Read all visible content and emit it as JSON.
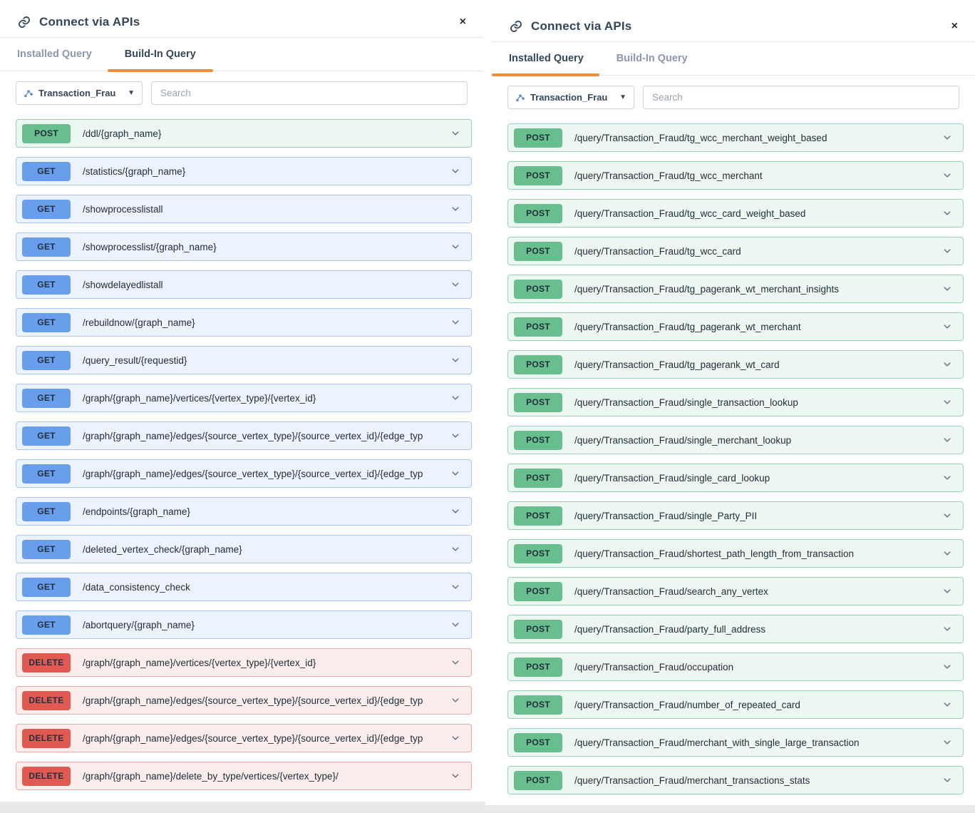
{
  "accent": {
    "tab_underline": "#F28C3A",
    "title_color": "#33475B"
  },
  "method_styles": {
    "POST": {
      "badge": "#68BE8D",
      "row_bg": "#EDF7F1",
      "row_border": "#9AD2B3"
    },
    "GET": {
      "badge": "#699EEC",
      "row_bg": "#EDF3FC",
      "row_border": "#A9C6F0"
    },
    "DELETE": {
      "badge": "#E15A52",
      "row_bg": "#FBEDEC",
      "row_border": "#EFA8A3"
    }
  },
  "left_panel": {
    "title": "Connect via APIs",
    "close_label": "×",
    "tabs": [
      {
        "label": "Installed Query",
        "active": false
      },
      {
        "label": "Build-In Query",
        "active": true
      }
    ],
    "graph_selector": {
      "value": "Transaction_Frau",
      "caret": "▼"
    },
    "search": {
      "placeholder": "Search"
    },
    "rows": [
      {
        "method": "POST",
        "path": "/ddl/{graph_name}"
      },
      {
        "method": "GET",
        "path": "/statistics/{graph_name}"
      },
      {
        "method": "GET",
        "path": "/showprocesslistall"
      },
      {
        "method": "GET",
        "path": "/showprocesslist/{graph_name}"
      },
      {
        "method": "GET",
        "path": "/showdelayedlistall"
      },
      {
        "method": "GET",
        "path": "/rebuildnow/{graph_name}"
      },
      {
        "method": "GET",
        "path": "/query_result/{requestid}"
      },
      {
        "method": "GET",
        "path": "/graph/{graph_name}/vertices/{vertex_type}/{vertex_id}"
      },
      {
        "method": "GET",
        "path": "/graph/{graph_name}/edges/{source_vertex_type}/{source_vertex_id}/{edge_typ"
      },
      {
        "method": "GET",
        "path": "/graph/{graph_name}/edges/{source_vertex_type}/{source_vertex_id}/{edge_typ"
      },
      {
        "method": "GET",
        "path": "/endpoints/{graph_name}"
      },
      {
        "method": "GET",
        "path": "/deleted_vertex_check/{graph_name}"
      },
      {
        "method": "GET",
        "path": "/data_consistency_check"
      },
      {
        "method": "GET",
        "path": "/abortquery/{graph_name}"
      },
      {
        "method": "DELETE",
        "path": "/graph/{graph_name}/vertices/{vertex_type}/{vertex_id}"
      },
      {
        "method": "DELETE",
        "path": "/graph/{graph_name}/edges/{source_vertex_type}/{source_vertex_id}/{edge_typ"
      },
      {
        "method": "DELETE",
        "path": "/graph/{graph_name}/edges/{source_vertex_type}/{source_vertex_id}/{edge_typ"
      },
      {
        "method": "DELETE",
        "path": "/graph/{graph_name}/delete_by_type/vertices/{vertex_type}/"
      }
    ]
  },
  "right_panel": {
    "title": "Connect via APIs",
    "close_label": "×",
    "tabs": [
      {
        "label": "Installed Query",
        "active": true
      },
      {
        "label": "Build-In Query",
        "active": false
      }
    ],
    "graph_selector": {
      "value": "Transaction_Frau",
      "caret": "▼"
    },
    "search": {
      "placeholder": "Search"
    },
    "rows": [
      {
        "method": "POST",
        "path": "/query/Transaction_Fraud/tg_wcc_merchant_weight_based"
      },
      {
        "method": "POST",
        "path": "/query/Transaction_Fraud/tg_wcc_merchant"
      },
      {
        "method": "POST",
        "path": "/query/Transaction_Fraud/tg_wcc_card_weight_based"
      },
      {
        "method": "POST",
        "path": "/query/Transaction_Fraud/tg_wcc_card"
      },
      {
        "method": "POST",
        "path": "/query/Transaction_Fraud/tg_pagerank_wt_merchant_insights"
      },
      {
        "method": "POST",
        "path": "/query/Transaction_Fraud/tg_pagerank_wt_merchant"
      },
      {
        "method": "POST",
        "path": "/query/Transaction_Fraud/tg_pagerank_wt_card"
      },
      {
        "method": "POST",
        "path": "/query/Transaction_Fraud/single_transaction_lookup"
      },
      {
        "method": "POST",
        "path": "/query/Transaction_Fraud/single_merchant_lookup"
      },
      {
        "method": "POST",
        "path": "/query/Transaction_Fraud/single_card_lookup"
      },
      {
        "method": "POST",
        "path": "/query/Transaction_Fraud/single_Party_PII"
      },
      {
        "method": "POST",
        "path": "/query/Transaction_Fraud/shortest_path_length_from_transaction"
      },
      {
        "method": "POST",
        "path": "/query/Transaction_Fraud/search_any_vertex"
      },
      {
        "method": "POST",
        "path": "/query/Transaction_Fraud/party_full_address"
      },
      {
        "method": "POST",
        "path": "/query/Transaction_Fraud/occupation"
      },
      {
        "method": "POST",
        "path": "/query/Transaction_Fraud/number_of_repeated_card"
      },
      {
        "method": "POST",
        "path": "/query/Transaction_Fraud/merchant_with_single_large_transaction"
      },
      {
        "method": "POST",
        "path": "/query/Transaction_Fraud/merchant_transactions_stats"
      }
    ]
  }
}
